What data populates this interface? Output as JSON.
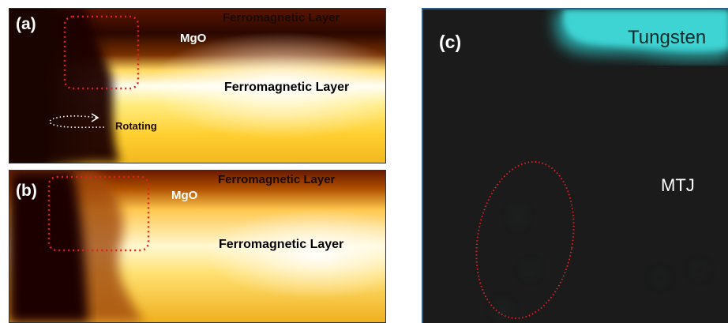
{
  "figure": {
    "panels": [
      {
        "id": "a",
        "letter": "(a)",
        "labels": {
          "top_layer": "Ferromagnetic Layer",
          "barrier": "MgO",
          "bottom_layer": "Ferromagnetic Layer",
          "rotation": "Rotating"
        }
      },
      {
        "id": "b",
        "letter": "(b)",
        "labels": {
          "top_layer": "Ferromagnetic Layer",
          "barrier": "MgO",
          "bottom_layer": "Ferromagnetic Layer"
        }
      },
      {
        "id": "c",
        "letter": "(c)",
        "labels": {
          "electrode": "Tungsten",
          "junction": "MTJ"
        }
      }
    ],
    "colors": {
      "highlight_outline": "#e02020",
      "tungsten_signal": "#3fd8d8",
      "map_background": "#1b1b1b",
      "heat_dark": "#1a0400",
      "heat_bright": "#ffffff"
    }
  }
}
